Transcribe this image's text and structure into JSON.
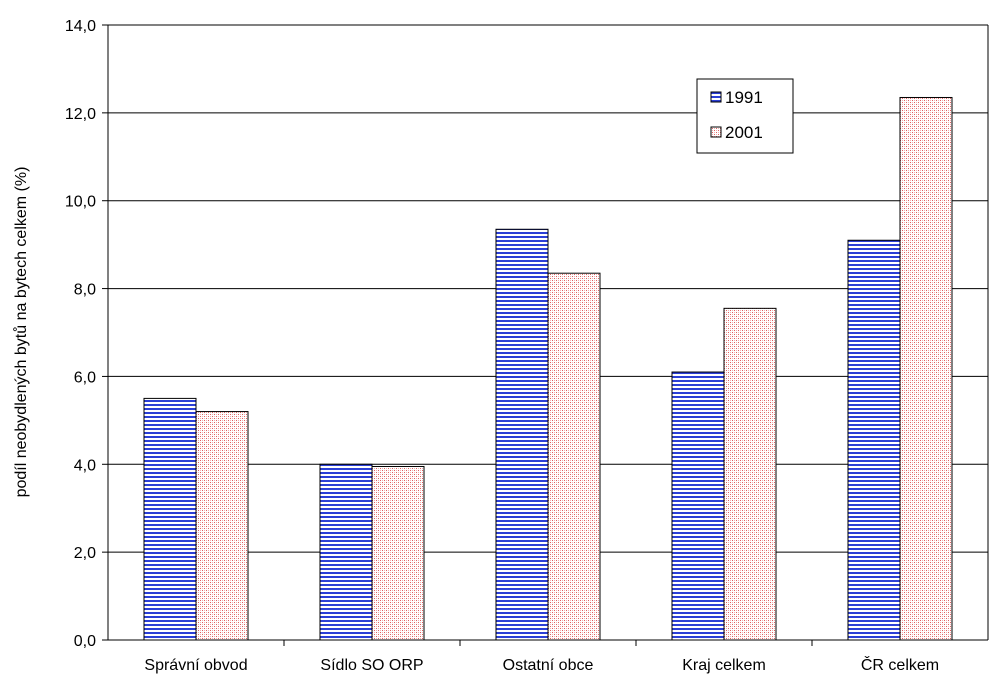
{
  "chart_data": {
    "type": "bar",
    "categories": [
      "Správní obvod",
      "Sídlo SO ORP",
      "Ostatní obce",
      "Kraj celkem",
      "ČR celkem"
    ],
    "series": [
      {
        "name": "1991",
        "values": [
          5.5,
          4.0,
          9.35,
          6.1,
          9.1
        ],
        "color": "#2b3fd6",
        "pattern": "horizontal-stripes"
      },
      {
        "name": "2001",
        "values": [
          5.2,
          3.95,
          8.35,
          7.55,
          12.35
        ],
        "color": "#e06060",
        "pattern": "dotted"
      }
    ],
    "title": "",
    "xlabel": "",
    "ylabel": "podíl neobydlených bytů na bytech celkem (%)",
    "ylim": [
      0,
      14
    ],
    "yticks": [
      "0,0",
      "2,0",
      "4,0",
      "6,0",
      "8,0",
      "10,0",
      "12,0",
      "14,0"
    ],
    "grid": "horizontal",
    "legend": "top-right"
  }
}
